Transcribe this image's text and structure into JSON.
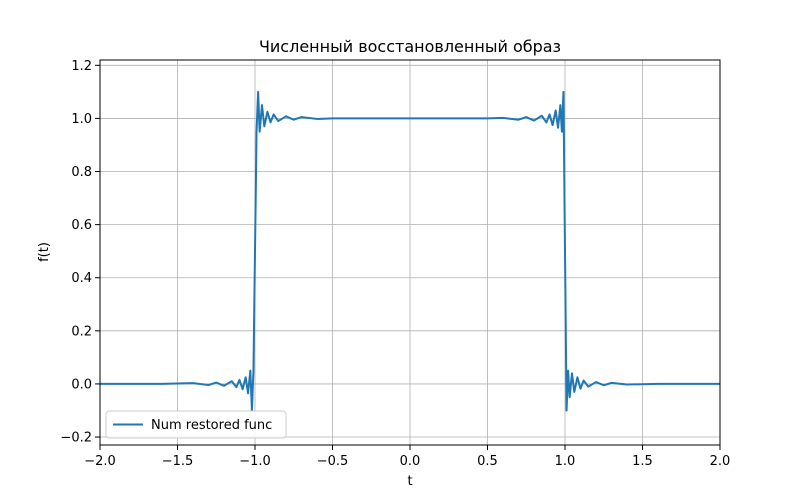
{
  "chart_data": {
    "type": "line",
    "title": "Численный восстановленный образ",
    "xlabel": "t",
    "ylabel": "f(t)",
    "xlim": [
      -2.0,
      2.0
    ],
    "ylim": [
      -0.23,
      1.22
    ],
    "xticks": [
      -2.0,
      -1.5,
      -1.0,
      -0.5,
      0.0,
      0.5,
      1.0,
      1.5,
      2.0
    ],
    "xtick_labels": [
      "−2.0",
      "−1.5",
      "−1.0",
      "−0.5",
      "0.0",
      "0.5",
      "1.0",
      "1.5",
      "2.0"
    ],
    "yticks": [
      -0.2,
      0.0,
      0.2,
      0.4,
      0.6,
      0.8,
      1.0,
      1.2
    ],
    "ytick_labels": [
      "−0.2",
      "0.0",
      "0.2",
      "0.4",
      "0.6",
      "0.8",
      "1.0",
      "1.2"
    ],
    "grid": true,
    "legend_position": "lower-left",
    "series": [
      {
        "name": "Num restored func",
        "color": "#1f77b4",
        "x": [
          -2.0,
          -1.6,
          -1.4,
          -1.3,
          -1.25,
          -1.2,
          -1.15,
          -1.12,
          -1.1,
          -1.08,
          -1.06,
          -1.045,
          -1.03,
          -1.02,
          -1.01,
          -1.0,
          -0.99,
          -0.98,
          -0.97,
          -0.955,
          -0.94,
          -0.92,
          -0.9,
          -0.88,
          -0.85,
          -0.8,
          -0.75,
          -0.7,
          -0.6,
          -0.5,
          0.0,
          0.5,
          0.6,
          0.7,
          0.75,
          0.8,
          0.85,
          0.88,
          0.9,
          0.92,
          0.94,
          0.955,
          0.97,
          0.98,
          0.99,
          1.0,
          1.01,
          1.02,
          1.03,
          1.045,
          1.06,
          1.08,
          1.1,
          1.12,
          1.15,
          1.2,
          1.25,
          1.3,
          1.4,
          1.6,
          2.0
        ],
        "y": [
          0.0,
          0.0,
          0.003,
          -0.004,
          0.005,
          -0.007,
          0.01,
          -0.012,
          0.015,
          -0.02,
          0.025,
          -0.035,
          0.05,
          -0.1,
          0.05,
          0.5,
          0.95,
          1.1,
          0.95,
          1.05,
          0.97,
          1.025,
          0.985,
          1.015,
          0.99,
          1.008,
          0.995,
          1.005,
          0.998,
          1.0,
          1.0,
          1.0,
          1.002,
          0.995,
          1.005,
          0.992,
          1.01,
          0.985,
          1.015,
          0.975,
          1.03,
          0.965,
          1.05,
          0.95,
          1.1,
          0.5,
          -0.1,
          0.05,
          -0.05,
          0.04,
          -0.03,
          0.025,
          -0.018,
          0.013,
          -0.01,
          0.007,
          -0.005,
          0.004,
          -0.002,
          0.0,
          0.0
        ]
      }
    ]
  }
}
